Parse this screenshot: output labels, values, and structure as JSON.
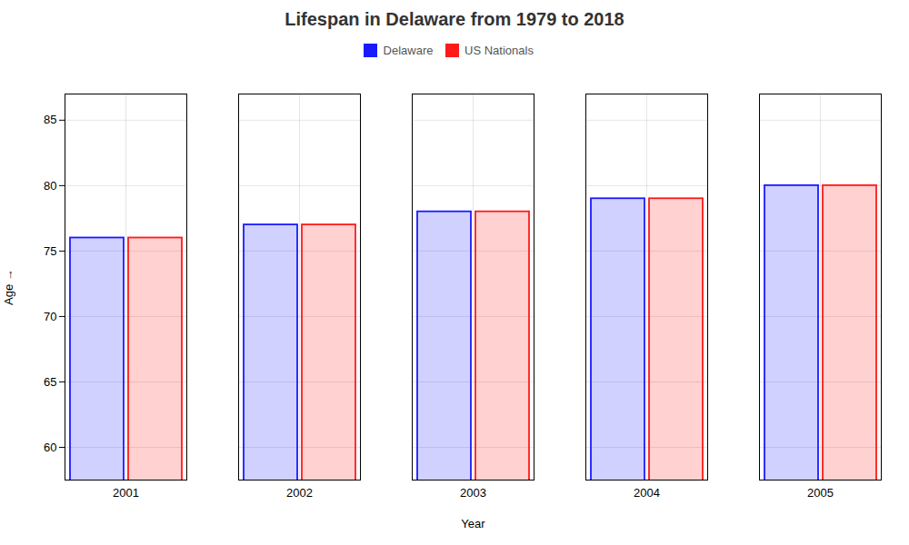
{
  "chart_data": {
    "type": "bar",
    "title": "Lifespan in Delaware from 1979 to 2018",
    "xlabel": "Year",
    "ylabel": "Age",
    "categories": [
      "2001",
      "2002",
      "2003",
      "2004",
      "2005"
    ],
    "series": [
      {
        "name": "Delaware",
        "color": "#1a1aff",
        "values": [
          76.0,
          77.0,
          78.0,
          79.0,
          80.0
        ]
      },
      {
        "name": "US Nationals",
        "color": "#ff1a1a",
        "values": [
          76.0,
          77.0,
          78.0,
          79.0,
          80.0
        ]
      }
    ],
    "ylim": [
      57.5,
      87
    ],
    "yticks": [
      60,
      65,
      70,
      75,
      80,
      85
    ],
    "grid": true,
    "legend": "top"
  }
}
